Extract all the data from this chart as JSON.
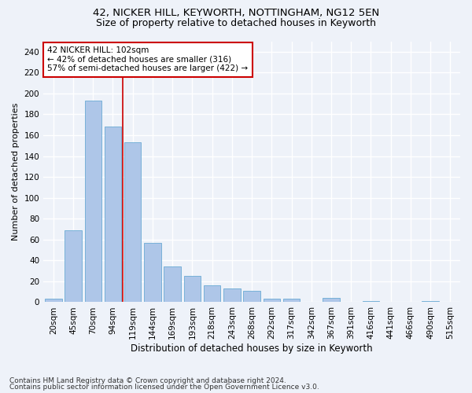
{
  "title1": "42, NICKER HILL, KEYWORTH, NOTTINGHAM, NG12 5EN",
  "title2": "Size of property relative to detached houses in Keyworth",
  "xlabel": "Distribution of detached houses by size in Keyworth",
  "ylabel": "Number of detached properties",
  "categories": [
    "20sqm",
    "45sqm",
    "70sqm",
    "94sqm",
    "119sqm",
    "144sqm",
    "169sqm",
    "193sqm",
    "218sqm",
    "243sqm",
    "268sqm",
    "292sqm",
    "317sqm",
    "342sqm",
    "367sqm",
    "391sqm",
    "416sqm",
    "441sqm",
    "466sqm",
    "490sqm",
    "515sqm"
  ],
  "values": [
    3,
    69,
    193,
    168,
    153,
    57,
    34,
    25,
    16,
    13,
    11,
    3,
    3,
    0,
    4,
    0,
    1,
    0,
    0,
    1,
    0
  ],
  "bar_color": "#aec6e8",
  "bar_edge_color": "#6aaad4",
  "vline_x": 3.5,
  "vline_color": "#cc0000",
  "annotation_text": "42 NICKER HILL: 102sqm\n← 42% of detached houses are smaller (316)\n57% of semi-detached houses are larger (422) →",
  "annotation_box_color": "#ffffff",
  "annotation_box_edge": "#cc0000",
  "ylim": [
    0,
    250
  ],
  "yticks": [
    0,
    20,
    40,
    60,
    80,
    100,
    120,
    140,
    160,
    180,
    200,
    220,
    240
  ],
  "footer1": "Contains HM Land Registry data © Crown copyright and database right 2024.",
  "footer2": "Contains public sector information licensed under the Open Government Licence v3.0.",
  "background_color": "#eef2f9",
  "grid_color": "#ffffff",
  "title1_fontsize": 9.5,
  "title2_fontsize": 9.0,
  "xlabel_fontsize": 8.5,
  "ylabel_fontsize": 8.0,
  "tick_fontsize": 7.5,
  "annot_fontsize": 7.5,
  "footer_fontsize": 6.5
}
